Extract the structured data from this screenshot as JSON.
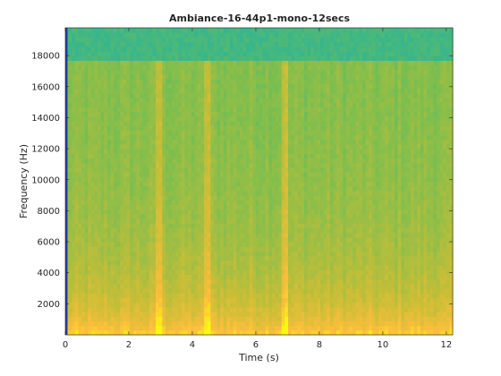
{
  "chart_data": {
    "type": "heatmap",
    "title": "Ambiance-16-44p1-mono-12secs",
    "xlabel": "Time (s)",
    "ylabel": "Frequency (Hz)",
    "xlim": [
      0,
      12.2
    ],
    "ylim": [
      0,
      19800
    ],
    "xticks": [
      0,
      2,
      4,
      6,
      8,
      10,
      12
    ],
    "yticks": [
      2000,
      4000,
      6000,
      8000,
      10000,
      12000,
      14000,
      16000,
      18000
    ],
    "xtick_labels": [
      "0",
      "2",
      "4",
      "6",
      "8",
      "10",
      "12"
    ],
    "ytick_labels": [
      "2000",
      "4000",
      "6000",
      "8000",
      "10000",
      "12000",
      "14000",
      "16000",
      "18000"
    ],
    "colormap": "parula",
    "bright_time_bands_s": [
      2.95,
      4.45,
      6.9
    ],
    "cutoff_frequency_hz": 17800,
    "grid": false,
    "colors": {
      "low": "#1ab2a8",
      "mid": "#99c240",
      "high": "#f5e81f",
      "left_edge": "#1f3fa8"
    }
  }
}
